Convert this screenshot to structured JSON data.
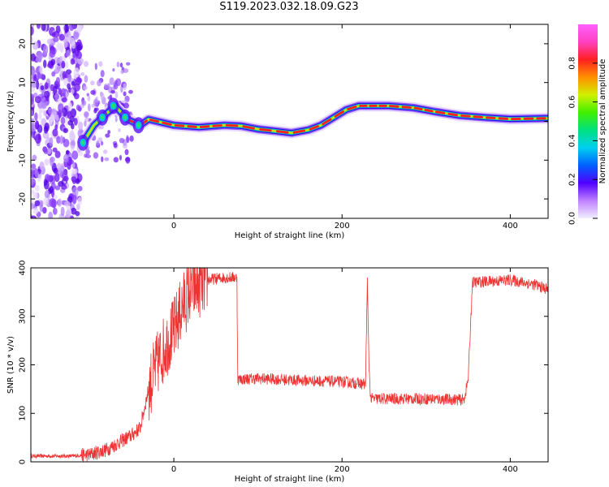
{
  "figure": {
    "title": "S119.2023.032.18.09.G23"
  },
  "chart_data": [
    {
      "type": "heatmap",
      "name": "spectrogram",
      "xlabel": "Height of straight line (km)",
      "ylabel": "Frequency (Hz)",
      "xlim": [
        -170,
        445
      ],
      "ylim": [
        -25,
        25
      ],
      "xticks": [
        0,
        200,
        400
      ],
      "yticks": [
        -20,
        -10,
        0,
        10,
        20
      ],
      "colorbar": {
        "label": "Normalized spectral amplitude",
        "range": [
          0,
          1
        ],
        "ticks": [
          0.0,
          0.2,
          0.4,
          0.6,
          0.8
        ],
        "palette": [
          "#f0f0ff",
          "#c080ff",
          "#5000ff",
          "#0060ff",
          "#00d0f0",
          "#00e080",
          "#40f000",
          "#d0f000",
          "#ff9000",
          "#ff2020",
          "#ff40c0",
          "#ff60ff"
        ]
      },
      "noise_region_x": [
        -170,
        -110
      ],
      "ridge": [
        {
          "x": -108,
          "y": -5.5
        },
        {
          "x": -95,
          "y": -1
        },
        {
          "x": -85,
          "y": 1
        },
        {
          "x": -70,
          "y": 4
        },
        {
          "x": -55,
          "y": 0.5
        },
        {
          "x": -40,
          "y": -1
        },
        {
          "x": -30,
          "y": 0.5
        },
        {
          "x": 0,
          "y": -1
        },
        {
          "x": 30,
          "y": -1.5
        },
        {
          "x": 60,
          "y": -1
        },
        {
          "x": 80,
          "y": -1.2
        },
        {
          "x": 100,
          "y": -2
        },
        {
          "x": 120,
          "y": -2.5
        },
        {
          "x": 140,
          "y": -3
        },
        {
          "x": 160,
          "y": -2.2
        },
        {
          "x": 175,
          "y": -1
        },
        {
          "x": 190,
          "y": 1
        },
        {
          "x": 205,
          "y": 3
        },
        {
          "x": 220,
          "y": 4
        },
        {
          "x": 255,
          "y": 4
        },
        {
          "x": 285,
          "y": 3.5
        },
        {
          "x": 310,
          "y": 2.5
        },
        {
          "x": 340,
          "y": 1.5
        },
        {
          "x": 370,
          "y": 1
        },
        {
          "x": 400,
          "y": 0.6
        },
        {
          "x": 445,
          "y": 0.8
        }
      ]
    },
    {
      "type": "line",
      "name": "snr",
      "xlabel": "Height of straight line (km)",
      "ylabel": "SNR (10 * v/v)",
      "xlim": [
        -170,
        445
      ],
      "ylim": [
        0,
        400
      ],
      "xticks": [
        0,
        200,
        400
      ],
      "yticks": [
        0,
        100,
        200,
        300,
        400
      ],
      "color": "#ee3333",
      "x": [
        -170,
        -120,
        -100,
        -80,
        -60,
        -50,
        -40,
        -30,
        -20,
        -10,
        0,
        10,
        20,
        40,
        60,
        75,
        76,
        100,
        150,
        200,
        228,
        230,
        232,
        234,
        300,
        345,
        350,
        355,
        400,
        430,
        445
      ],
      "y": [
        12,
        12,
        15,
        25,
        45,
        55,
        70,
        150,
        200,
        240,
        270,
        320,
        355,
        375,
        380,
        380,
        170,
        172,
        168,
        165,
        160,
        375,
        200,
        130,
        130,
        128,
        170,
        370,
        375,
        365,
        355
      ]
    }
  ]
}
